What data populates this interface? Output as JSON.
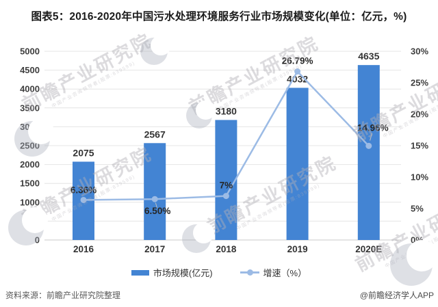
{
  "title": "图表5：2016-2020年中国污水处理环境服务行业市场规模变化(单位：亿元，%)",
  "footer": {
    "source": "资料来源：前瞻产业研究院整理",
    "credit": "@前瞻经济学人APP"
  },
  "legend": {
    "bar_label": "市场规模(亿元)",
    "line_label": "增速（%）"
  },
  "watermark": {
    "text": "前瞻产业研究院",
    "subtext": "中国产业咨询领导者(股票:839599)"
  },
  "colors": {
    "bar": "#4384d3",
    "line": "#9cbbe5",
    "grid": "#e4e4e4",
    "baseline": "#c9c9c9",
    "leader": "#bfbfbf"
  },
  "chart_data": {
    "type": "bar",
    "title": "图表5：2016-2020年中国污水处理环境服务行业市场规模变化(单位：亿元，%)",
    "categories": [
      "2016",
      "2017",
      "2018",
      "2019",
      "2020E"
    ],
    "series": [
      {
        "name": "市场规模(亿元)",
        "type": "bar",
        "axis": "left",
        "values": [
          2075,
          2567,
          3180,
          4032,
          4635
        ],
        "labels": [
          "2075",
          "2567",
          "3180",
          "4032",
          "4635"
        ]
      },
      {
        "name": "增速（%）",
        "type": "line",
        "axis": "right",
        "values": [
          6.36,
          6.5,
          7,
          26.79,
          14.96
        ],
        "labels": [
          "6.36%",
          "6.50%",
          "7%",
          "26.79%",
          "14.96%"
        ],
        "label_offsets": [
          [
            0,
            -14
          ],
          [
            4,
            18
          ],
          [
            0,
            -15
          ],
          [
            0,
            -15
          ],
          [
            6,
            -26
          ]
        ],
        "leader": [
          false,
          true,
          false,
          false,
          true
        ]
      }
    ],
    "left_axis": {
      "min": 0,
      "max": 5000,
      "step": 500,
      "ticks": [
        "0",
        "500",
        "1000",
        "1500",
        "2000",
        "2500",
        "3000",
        "3500",
        "4000",
        "4500",
        "5000"
      ]
    },
    "right_axis": {
      "min": 0,
      "max": 30,
      "step": 5,
      "ticks": [
        "0%",
        "5%",
        "10%",
        "15%",
        "20%",
        "25%",
        "30%"
      ]
    },
    "grid": true,
    "legend_position": "bottom"
  }
}
